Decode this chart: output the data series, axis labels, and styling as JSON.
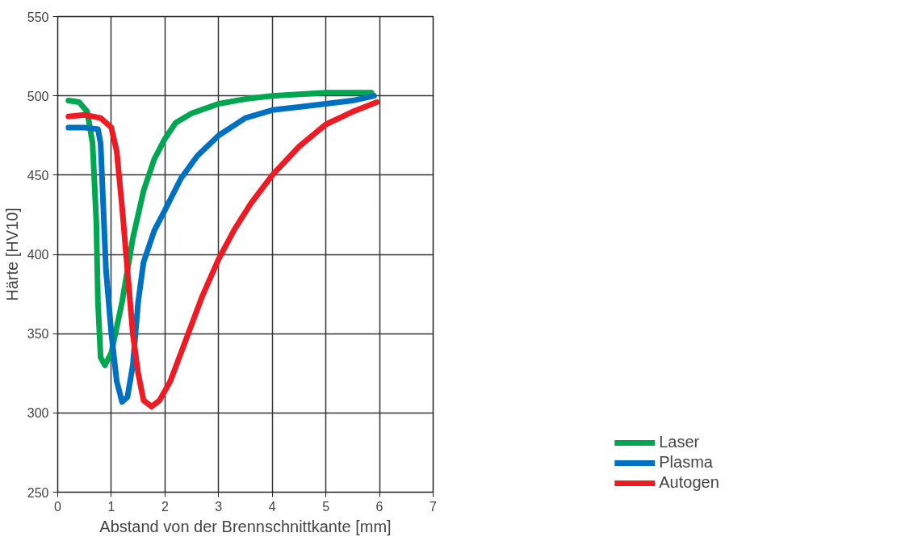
{
  "chart_data": {
    "type": "line",
    "xlabel": "Abstand von der Brennschnittkante [mm]",
    "ylabel": "Härte [HV10]",
    "xlim": [
      0,
      7
    ],
    "xticks": [
      0,
      1,
      2,
      3,
      4,
      5,
      6,
      7
    ],
    "ylim": [
      250,
      550
    ],
    "yticks": [
      250,
      300,
      350,
      400,
      450,
      500,
      550
    ],
    "grid": true,
    "legend": "bottom right",
    "line_style": "solid",
    "series": [
      {
        "name": "Laser",
        "color": "#00a650",
        "x": [
          0.2,
          0.4,
          0.55,
          0.65,
          0.72,
          0.75,
          0.8,
          0.88,
          1.0,
          1.2,
          1.4,
          1.6,
          1.8,
          2.0,
          2.2,
          2.5,
          3,
          3.5,
          4,
          5,
          5.85
        ],
        "values": [
          497,
          496,
          490,
          470,
          420,
          370,
          335,
          330,
          338,
          370,
          410,
          440,
          460,
          473,
          483,
          489,
          495,
          498,
          500,
          502,
          502
        ]
      },
      {
        "name": "Plasma",
        "color": "#0070c0",
        "x": [
          0.2,
          0.5,
          0.75,
          0.8,
          0.85,
          0.9,
          1.0,
          1.1,
          1.2,
          1.3,
          1.4,
          1.5,
          1.6,
          1.8,
          2.0,
          2.3,
          2.6,
          3,
          3.5,
          4,
          4.5,
          5,
          5.5,
          5.9
        ],
        "values": [
          480,
          480,
          479,
          470,
          430,
          390,
          350,
          320,
          307,
          310,
          330,
          370,
          395,
          415,
          428,
          448,
          462,
          475,
          486,
          491,
          493,
          495,
          497,
          500
        ]
      },
      {
        "name": "Autogen",
        "color": "#ed1c24",
        "x": [
          0.2,
          0.5,
          0.8,
          1.0,
          1.1,
          1.2,
          1.3,
          1.4,
          1.5,
          1.6,
          1.75,
          1.9,
          2.1,
          2.4,
          2.7,
          3,
          3.3,
          3.6,
          4,
          4.5,
          5,
          5.5,
          5.95
        ],
        "values": [
          487,
          488,
          486,
          480,
          465,
          430,
          390,
          350,
          325,
          308,
          304,
          308,
          320,
          347,
          374,
          397,
          416,
          432,
          450,
          468,
          482,
          490,
          496
        ]
      }
    ]
  }
}
